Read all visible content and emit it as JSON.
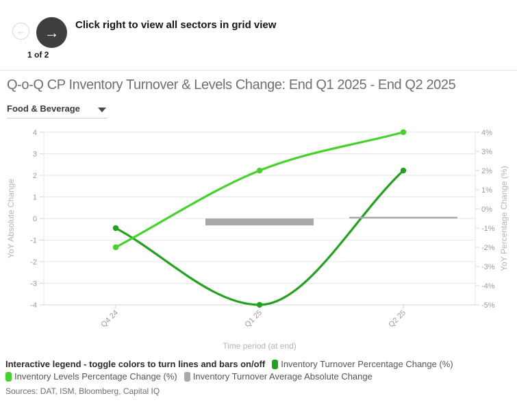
{
  "nav": {
    "caption": "Click right to view all sectors in grid view",
    "page_indicator": "1 of 2",
    "prev_glyph": "←",
    "next_glyph": "→"
  },
  "header": {
    "title": "Q-o-Q CP Inventory Turnover & Levels Change: End Q1 2025 - End Q2 2025"
  },
  "sector_dropdown": {
    "selected": "Food & Beverage"
  },
  "chart_data": {
    "type": "line",
    "categories": [
      "Q4 24",
      "Q1 25",
      "Q2 25"
    ],
    "series": [
      {
        "name": "Inventory Turnover Percentage Change (%)",
        "type": "line",
        "axis": "right",
        "color": "#22a31e",
        "values": [
          -1.0,
          -5.0,
          2.0
        ]
      },
      {
        "name": "Inventory Levels Percentage Change (%)",
        "type": "line",
        "axis": "right",
        "color": "#44d32a",
        "values": [
          -2.0,
          2.0,
          4.0
        ]
      },
      {
        "name": "Inventory Turnover Average Absolute Change",
        "type": "bar",
        "axis": "left",
        "color": "#a9a9a9",
        "values": [
          null,
          -0.32,
          0.08
        ]
      }
    ],
    "xlabel": "Time period (at end)",
    "ylabel_left": "YoY Absolute Change",
    "ylabel_right": "YoY Percentage Change (%)",
    "ylim_left": [
      -4,
      4
    ],
    "ylim_right": [
      -5,
      4
    ],
    "left_ticks": [
      4,
      3,
      2,
      1,
      0,
      -1,
      -2,
      -3,
      -4
    ],
    "right_ticks": [
      "4%",
      "3%",
      "2%",
      "1%",
      "0%",
      "-1%",
      "-2%",
      "-3%",
      "-4%",
      "-5%"
    ],
    "grid": true,
    "legend_position": "bottom"
  },
  "legend": {
    "intro": "Interactive legend - toggle colors to turn lines and bars on/off"
  },
  "sources": "Sources: DAT, ISM, Bloomberg, Capital IQ",
  "colors": {
    "grid": "#e6e6e6",
    "axis_line": "#d6d6d6",
    "nav_button": "#3f3f3f"
  }
}
